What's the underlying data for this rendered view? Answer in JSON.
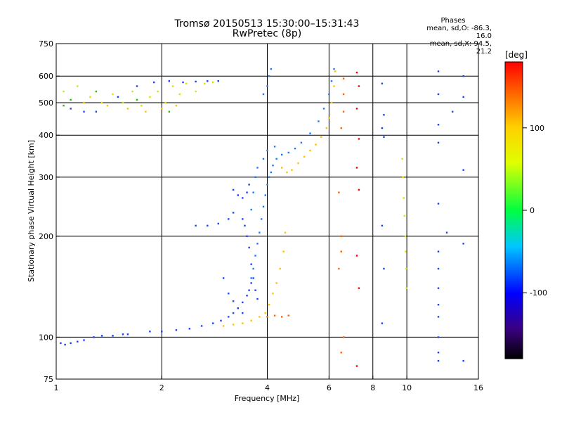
{
  "header": {
    "title_line1": "Tromsø 20150513 15:30:00–15:31:43",
    "title_line2": "RwPretec (8p)"
  },
  "phases_box": {
    "label": "Phases",
    "line_o": "mean, sd,O: -86.3, 16.0",
    "line_x": "mean, sd,X:  94.5, 21.2"
  },
  "chart_data": {
    "type": "scatter",
    "xlabel": "Frequency [MHz]",
    "ylabel": "Stationary phase Virtual Height [km]",
    "x_scale": "log",
    "y_scale": "log",
    "xlim": [
      1,
      16
    ],
    "ylim": [
      75,
      750
    ],
    "x_ticks": [
      {
        "value": 1,
        "label": "1"
      },
      {
        "value": 2,
        "label": "2"
      },
      {
        "value": 4,
        "label": "4"
      },
      {
        "value": 6,
        "label": "6"
      },
      {
        "value": 8,
        "label": "8"
      },
      {
        "value": 10,
        "label": "10"
      },
      {
        "value": 16,
        "label": "16"
      }
    ],
    "y_ticks": [
      {
        "value": 75,
        "label": "75"
      },
      {
        "value": 100,
        "label": "100"
      },
      {
        "value": 200,
        "label": "200"
      },
      {
        "value": 300,
        "label": "300"
      },
      {
        "value": 400,
        "label": "400"
      },
      {
        "value": 500,
        "label": "500"
      },
      {
        "value": 600,
        "label": "600"
      },
      {
        "value": 750,
        "label": "750"
      }
    ],
    "grid_x": [
      2,
      4,
      6,
      8,
      10
    ],
    "grid_y": [
      100,
      200,
      300,
      400,
      500,
      600
    ],
    "grid": true,
    "colorbar": {
      "label": "[deg]",
      "range": [
        -180,
        180
      ],
      "ticks": [
        {
          "value": 100,
          "label": "100"
        },
        {
          "value": 0,
          "label": "0"
        },
        {
          "value": -100,
          "label": "-100"
        }
      ]
    },
    "series": [
      {
        "color": "#1840ff",
        "phase": -100,
        "points": [
          [
            1.03,
            96
          ],
          [
            1.06,
            95
          ],
          [
            1.1,
            96
          ],
          [
            1.15,
            97
          ],
          [
            1.2,
            98
          ],
          [
            1.28,
            100
          ],
          [
            1.35,
            101
          ],
          [
            1.45,
            101
          ],
          [
            1.55,
            102
          ],
          [
            1.6,
            102
          ]
        ]
      },
      {
        "color": "#1840ff",
        "phase": -100,
        "points": [
          [
            1.85,
            104
          ],
          [
            2.0,
            104
          ],
          [
            2.2,
            105
          ],
          [
            2.4,
            106
          ],
          [
            2.6,
            108
          ],
          [
            2.8,
            110
          ],
          [
            2.95,
            112
          ],
          [
            3.1,
            115
          ],
          [
            3.2,
            118
          ],
          [
            3.3,
            122
          ],
          [
            3.4,
            127
          ],
          [
            3.5,
            133
          ],
          [
            3.55,
            138
          ],
          [
            3.6,
            145
          ]
        ]
      },
      {
        "color": "#1878ff",
        "phase": -90,
        "points": [
          [
            3.6,
            150
          ],
          [
            3.65,
            160
          ],
          [
            3.7,
            175
          ],
          [
            3.75,
            190
          ],
          [
            3.8,
            205
          ],
          [
            3.85,
            225
          ],
          [
            3.9,
            245
          ],
          [
            3.95,
            265
          ],
          [
            4.0,
            285
          ],
          [
            4.05,
            300
          ],
          [
            4.1,
            310
          ],
          [
            4.15,
            325
          ],
          [
            4.25,
            340
          ],
          [
            4.4,
            350
          ],
          [
            4.6,
            355
          ],
          [
            4.8,
            365
          ],
          [
            5.0,
            380
          ],
          [
            5.3,
            405
          ],
          [
            5.6,
            440
          ],
          [
            5.8,
            480
          ],
          [
            6.0,
            530
          ],
          [
            6.1,
            580
          ],
          [
            6.2,
            630
          ]
        ]
      },
      {
        "color": "#1840ff",
        "phase": -100,
        "points": [
          [
            3.4,
            225
          ],
          [
            3.45,
            215
          ],
          [
            3.5,
            200
          ],
          [
            3.55,
            185
          ],
          [
            3.6,
            165
          ],
          [
            3.65,
            150
          ],
          [
            3.7,
            138
          ],
          [
            3.75,
            130
          ]
        ]
      },
      {
        "color": "#1878ff",
        "phase": -90,
        "points": [
          [
            3.6,
            240
          ],
          [
            3.65,
            270
          ],
          [
            3.7,
            300
          ],
          [
            3.75,
            320
          ],
          [
            3.9,
            340
          ],
          [
            4.0,
            360
          ],
          [
            4.2,
            370
          ]
        ]
      },
      {
        "color": "#1840ff",
        "phase": -100,
        "points": [
          [
            3.2,
            275
          ],
          [
            3.3,
            265
          ],
          [
            3.4,
            260
          ],
          [
            3.5,
            270
          ],
          [
            3.55,
            285
          ]
        ]
      },
      {
        "color": "#1840ff",
        "phase": -100,
        "points": [
          [
            2.5,
            215
          ],
          [
            2.7,
            215
          ],
          [
            2.9,
            218
          ],
          [
            3.1,
            225
          ],
          [
            3.2,
            235
          ]
        ]
      },
      {
        "color": "#1840ff",
        "phase": -100,
        "points": [
          [
            3.0,
            150
          ],
          [
            3.1,
            135
          ],
          [
            3.2,
            128
          ],
          [
            3.3,
            122
          ],
          [
            3.4,
            118
          ]
        ]
      },
      {
        "color": "#1878ff",
        "phase": -90,
        "points": [
          [
            3.9,
            530
          ],
          [
            4.0,
            560
          ],
          [
            4.05,
            600
          ],
          [
            4.1,
            630
          ]
        ]
      },
      {
        "color": "#ffc000",
        "phase": 110,
        "points": [
          [
            3.0,
            108
          ],
          [
            3.2,
            109
          ],
          [
            3.4,
            110
          ],
          [
            3.6,
            112
          ],
          [
            3.8,
            115
          ],
          [
            3.95,
            118
          ],
          [
            4.05,
            125
          ],
          [
            4.15,
            135
          ],
          [
            4.25,
            145
          ],
          [
            4.35,
            160
          ],
          [
            4.45,
            180
          ],
          [
            4.5,
            205
          ]
        ]
      },
      {
        "color": "#ff6000",
        "phase": 150,
        "points": [
          [
            4.0,
            115
          ],
          [
            4.2,
            116
          ],
          [
            4.4,
            115
          ],
          [
            4.6,
            116
          ]
        ]
      },
      {
        "color": "#ffc000",
        "phase": 110,
        "points": [
          [
            4.4,
            320
          ],
          [
            4.55,
            310
          ],
          [
            4.7,
            315
          ],
          [
            4.9,
            330
          ],
          [
            5.1,
            345
          ],
          [
            5.3,
            360
          ],
          [
            5.5,
            375
          ],
          [
            5.7,
            395
          ],
          [
            5.9,
            420
          ],
          [
            6.0,
            450
          ],
          [
            6.1,
            500
          ],
          [
            6.2,
            560
          ],
          [
            6.25,
            620
          ]
        ]
      },
      {
        "color": "#e0e000",
        "phase": 90,
        "points": [
          [
            1.05,
            540
          ],
          [
            1.15,
            560
          ],
          [
            1.25,
            520
          ],
          [
            1.35,
            500
          ],
          [
            1.45,
            530
          ],
          [
            1.55,
            500
          ],
          [
            1.65,
            540
          ],
          [
            1.75,
            490
          ],
          [
            1.85,
            520
          ],
          [
            1.95,
            540
          ],
          [
            2.05,
            500
          ],
          [
            2.15,
            560
          ],
          [
            2.25,
            530
          ],
          [
            2.35,
            570
          ],
          [
            2.5,
            540
          ],
          [
            2.65,
            570
          ],
          [
            2.8,
            575
          ]
        ]
      },
      {
        "color": "#1840ff",
        "phase": -100,
        "points": [
          [
            1.1,
            480
          ],
          [
            1.2,
            470
          ],
          [
            1.3,
            470
          ],
          [
            1.5,
            520
          ],
          [
            1.7,
            560
          ],
          [
            1.9,
            575
          ],
          [
            2.1,
            580
          ],
          [
            2.3,
            575
          ],
          [
            2.5,
            578
          ],
          [
            2.7,
            580
          ],
          [
            2.9,
            580
          ]
        ]
      },
      {
        "color": "#ffc000",
        "phase": 110,
        "points": [
          [
            1.2,
            500
          ],
          [
            1.4,
            490
          ],
          [
            1.6,
            480
          ],
          [
            1.8,
            470
          ],
          [
            2.0,
            480
          ],
          [
            2.2,
            490
          ]
        ]
      },
      {
        "color": "#20c000",
        "phase": 30,
        "points": [
          [
            1.05,
            490
          ],
          [
            1.1,
            510
          ],
          [
            1.3,
            540
          ],
          [
            1.7,
            510
          ],
          [
            2.1,
            470
          ]
        ]
      },
      {
        "color": "#e0e000",
        "phase": 90,
        "points": [
          [
            9.7,
            340
          ],
          [
            9.75,
            300
          ],
          [
            9.8,
            260
          ],
          [
            9.85,
            230
          ],
          [
            9.9,
            200
          ],
          [
            9.92,
            180
          ],
          [
            9.95,
            160
          ],
          [
            9.98,
            140
          ]
        ]
      },
      {
        "color": "#1840ff",
        "phase": -100,
        "points": [
          [
            12.3,
            620
          ],
          [
            12.3,
            530
          ],
          [
            12.3,
            430
          ],
          [
            12.3,
            380
          ],
          [
            12.3,
            250
          ],
          [
            12.3,
            180
          ],
          [
            12.3,
            160
          ],
          [
            12.3,
            140
          ],
          [
            12.3,
            125
          ],
          [
            12.3,
            115
          ],
          [
            12.3,
            100
          ],
          [
            12.3,
            90
          ],
          [
            12.3,
            85
          ]
        ]
      },
      {
        "color": "#ff6000",
        "phase": 150,
        "points": [
          [
            6.6,
            590
          ],
          [
            6.6,
            530
          ],
          [
            6.6,
            470
          ],
          [
            6.5,
            420
          ],
          [
            6.4,
            270
          ],
          [
            6.5,
            200
          ],
          [
            6.5,
            180
          ],
          [
            6.4,
            160
          ],
          [
            6.6,
            100
          ],
          [
            6.5,
            90
          ]
        ]
      },
      {
        "color": "#1840ff",
        "phase": -100,
        "points": [
          [
            8.5,
            570
          ],
          [
            8.6,
            460
          ],
          [
            8.5,
            420
          ],
          [
            8.6,
            395
          ],
          [
            8.5,
            215
          ],
          [
            8.6,
            160
          ],
          [
            8.5,
            110
          ]
        ]
      },
      {
        "color": "#ff0000",
        "phase": 180,
        "points": [
          [
            7.2,
            615
          ],
          [
            7.3,
            560
          ],
          [
            7.2,
            480
          ],
          [
            7.3,
            390
          ],
          [
            7.2,
            320
          ],
          [
            7.3,
            275
          ],
          [
            7.2,
            175
          ],
          [
            7.3,
            140
          ],
          [
            7.2,
            82
          ]
        ]
      },
      {
        "color": "#1840ff",
        "phase": -100,
        "points": [
          [
            14.5,
            600
          ],
          [
            14.5,
            520
          ],
          [
            14.5,
            315
          ],
          [
            14.5,
            190
          ],
          [
            14.5,
            85
          ],
          [
            13.0,
            205
          ],
          [
            13.5,
            470
          ]
        ]
      }
    ]
  }
}
